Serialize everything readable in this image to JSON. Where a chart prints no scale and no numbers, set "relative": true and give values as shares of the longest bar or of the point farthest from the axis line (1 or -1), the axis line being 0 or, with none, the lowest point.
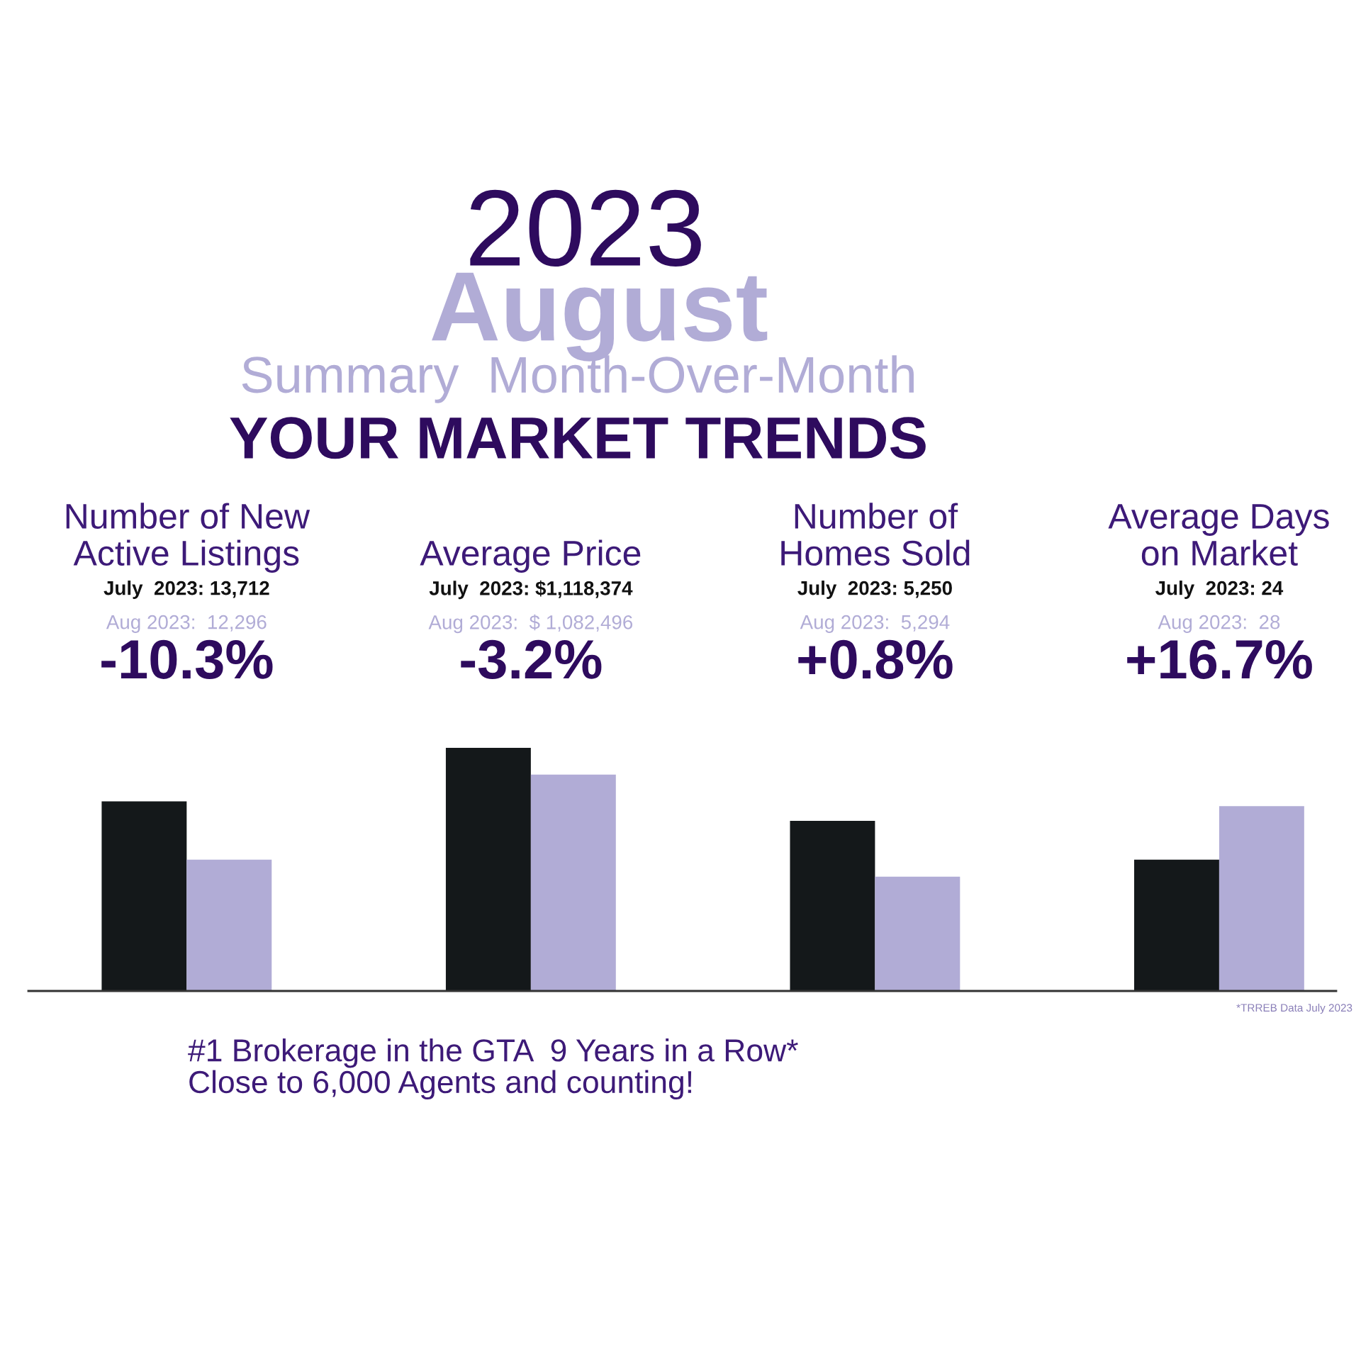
{
  "chart_data": {
    "type": "bar",
    "title": "2023",
    "subtitle": "August",
    "categories": [
      "Number of New\nActive Listings",
      "Average Price",
      "Number of\nHomes Sold",
      "Average Days\non Market"
    ],
    "relative": true,
    "tick_labels": false,
    "grid": false,
    "legend": false,
    "series": [
      {
        "color": "#14181a",
        "values": [
          0.78,
          1.0,
          0.7,
          0.54
        ]
      },
      {
        "color": "#b1acd6",
        "values": [
          0.54,
          0.89,
          0.47,
          0.76
        ]
      }
    ],
    "annotations": [
      "Summary  Month-Over-Month",
      "YOUR MARKET TRENDS",
      "July  2023: 13,712",
      "Aug 2023:  12,296",
      "-10.3%",
      "July  2023: $1,118,374",
      "Aug 2023:  $ 1,082,496",
      "-3.2%",
      "July  2023: 5,250",
      "Aug 2023:  5,294",
      "+0.8%",
      "July  2023: 24",
      "Aug 2023:  28",
      "+16.7%",
      "*TRREB Data July 2023",
      "#1 Brokerage in the GTA  9 Years in a Row*\nClose to 6,000 Agents and counting!"
    ]
  }
}
